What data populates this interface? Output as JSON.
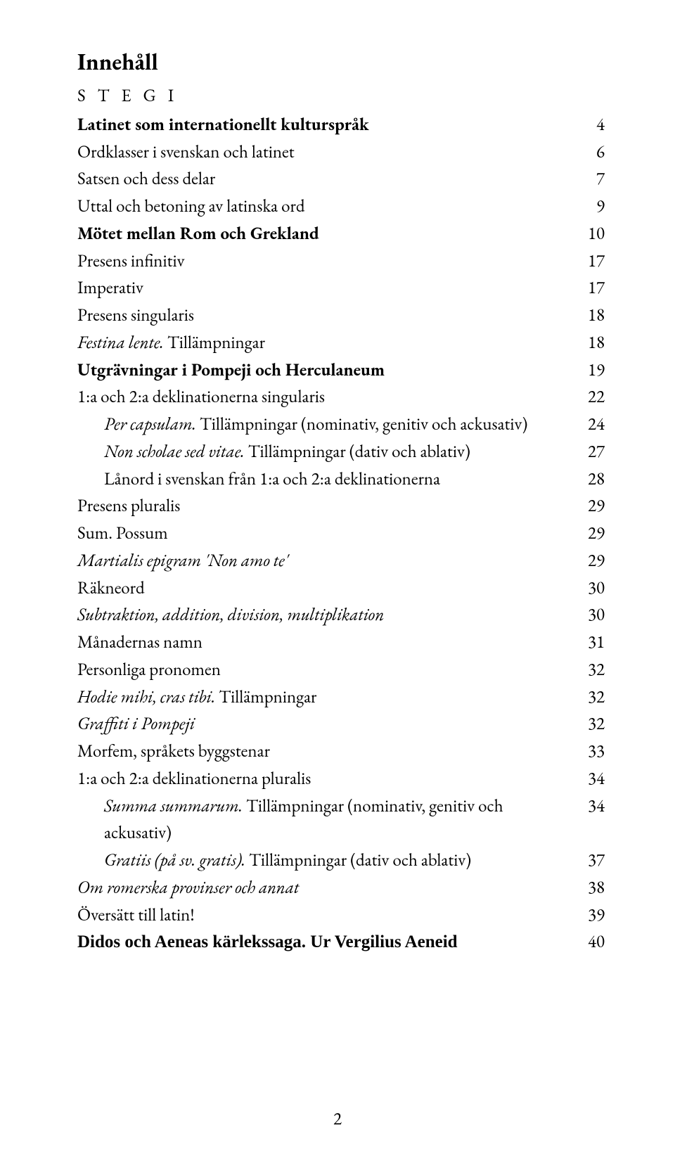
{
  "title": "Innehåll",
  "section_label": "S T E G  I",
  "page_number": "2",
  "colors": {
    "background": "#ffffff",
    "text": "#000000"
  },
  "typography": {
    "body_family": "Garamond",
    "body_size_pt": 19,
    "title_size_pt": 25,
    "line_height": 1.55,
    "last_row_family": "Times New Roman"
  },
  "entries": [
    {
      "label": "Latinet som internationellt kulturspråk",
      "page": "4",
      "bold": true
    },
    {
      "label": "Ordklasser i svenskan och latinet",
      "page": "6"
    },
    {
      "label": "Satsen och dess delar",
      "page": "7"
    },
    {
      "label": "Uttal och betoning av latinska ord",
      "page": "9"
    },
    {
      "label": "Mötet mellan Rom och Grekland",
      "page": "10",
      "bold": true
    },
    {
      "label": "Presens infinitiv",
      "page": "17"
    },
    {
      "label": "Imperativ",
      "page": "17"
    },
    {
      "label": "Presens singularis",
      "page": "18"
    },
    {
      "label_html": "<span class=\"italic\">Festina lente.</span> Tillämpningar",
      "page": "18"
    },
    {
      "label": "Utgrävningar i Pompeji och Herculaneum",
      "page": "19",
      "bold": true
    },
    {
      "label": "1:a och 2:a deklinationerna singularis",
      "page": "22"
    },
    {
      "label_html": "<span class=\"italic\">Per capsulam.</span> Tillämpningar (nominativ, genitiv och ackusativ)",
      "page": "24",
      "indent": true
    },
    {
      "label_html": "<span class=\"italic\">Non scholae sed vitae.</span> Tillämpningar (dativ och ablativ)",
      "page": "27",
      "indent": true
    },
    {
      "label": "Lånord i svenskan från 1:a och 2:a deklinationerna",
      "page": "28",
      "indent": true
    },
    {
      "label": "Presens pluralis",
      "page": "29"
    },
    {
      "label": "Sum. Possum",
      "page": "29"
    },
    {
      "label_html": "<span class=\"italic\">Martialis epigram 'Non amo te'</span>",
      "page": "29"
    },
    {
      "label": "Räkneord",
      "page": "30"
    },
    {
      "label": "Subtraktion, addition, division, multiplikation",
      "page": "30",
      "italic": true
    },
    {
      "label": "Månadernas namn",
      "page": "31"
    },
    {
      "label": "Personliga pronomen",
      "page": "32"
    },
    {
      "label_html": "<span class=\"italic\">Hodie mihi, cras tibi.</span> Tillämpningar",
      "page": "32"
    },
    {
      "label": "Graffiti i Pompeji",
      "page": "32",
      "italic": true
    },
    {
      "label": "Morfem, språkets byggstenar",
      "page": "33"
    },
    {
      "label": "1:a och 2:a deklinationerna pluralis",
      "page": "34"
    },
    {
      "label_html": "<span class=\"italic\">Summa summarum.</span> Tillämpningar (nominativ, genitiv och ackusativ)",
      "page": "34",
      "indent": true
    },
    {
      "label_html": "<span class=\"italic\">Gratiis (på sv. gratis).</span> Tillämpningar (dativ och ablativ)",
      "page": "37",
      "indent": true
    },
    {
      "label": "Om romerska provinser och annat",
      "page": "38",
      "italic": true
    },
    {
      "label": "Översätt till latin!",
      "page": "39"
    },
    {
      "label": "Didos och Aeneas kärlekssaga. Ur Vergilius Aeneid",
      "page": "40",
      "bold": true,
      "last": true
    }
  ]
}
